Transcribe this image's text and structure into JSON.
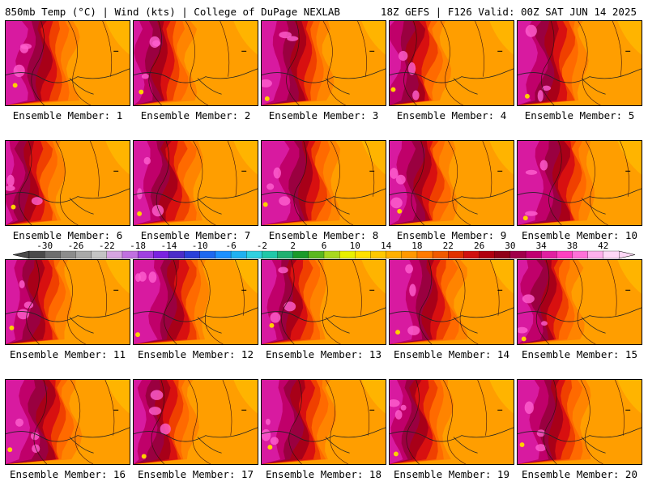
{
  "header": {
    "left": "850mb Temp (°C) | Wind (kts) | College of DuPage NEXLAB",
    "right": "18Z GEFS | F126 Valid: 00Z SAT JUN 14 2025"
  },
  "members": [
    "Ensemble Member: 1",
    "Ensemble Member: 2",
    "Ensemble Member: 3",
    "Ensemble Member: 4",
    "Ensemble Member: 5",
    "Ensemble Member: 6",
    "Ensemble Member: 7",
    "Ensemble Member: 8",
    "Ensemble Member: 9",
    "Ensemble Member: 10",
    "Ensemble Member: 11",
    "Ensemble Member: 12",
    "Ensemble Member: 13",
    "Ensemble Member: 14",
    "Ensemble Member: 15",
    "Ensemble Member: 16",
    "Ensemble Member: 17",
    "Ensemble Member: 18",
    "Ensemble Member: 19",
    "Ensemble Member: 20"
  ],
  "colorbar": {
    "labels": [
      "-30",
      "-26",
      "-22",
      "-18",
      "-14",
      "-10",
      "-6",
      "-2",
      "2",
      "6",
      "10",
      "14",
      "18",
      "22",
      "26",
      "30",
      "34",
      "38",
      "42"
    ],
    "colors": [
      "#4a4a4a",
      "#6e6e6e",
      "#8c8c8c",
      "#a9a9a9",
      "#c4c4c4",
      "#d6a4e0",
      "#c070e0",
      "#a040e0",
      "#7a22e0",
      "#4b2cc8",
      "#2a40d8",
      "#1f68f0",
      "#1e90ff",
      "#20b0f0",
      "#30d0e0",
      "#20c8a8",
      "#20b070",
      "#1a9a2a",
      "#5ab820",
      "#a8d820",
      "#e8f000",
      "#ffe000",
      "#ffc800",
      "#ffb000",
      "#ff9800",
      "#ff7a00",
      "#f05a00",
      "#e03000",
      "#d01010",
      "#b00010",
      "#900018",
      "#a0004a",
      "#c00070",
      "#e020a0",
      "#ff40c0",
      "#ff70d8",
      "#ffb0ec",
      "#ffd8f6"
    ]
  }
}
